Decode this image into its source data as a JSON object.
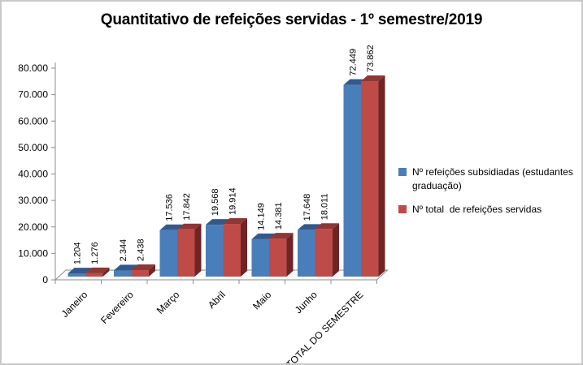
{
  "window": {
    "background": "#ffffff",
    "border_color": "#c9c9c9"
  },
  "chart_data": {
    "type": "bar",
    "style": "3d-clustered-column",
    "title": "Quantitativo de refeições servidas - 1º semestre/2019",
    "categories": [
      "Janeiro",
      "Fevereiro",
      "Março",
      "Abril",
      "Maio",
      "Junho",
      "TOTAL DO SEMESTRE"
    ],
    "series": [
      {
        "name": "Nº refeições subsidiadas (estudantes graduação)",
        "color": "#4a7ebb",
        "top_color": "#35588a",
        "side_color": "#2d4d79",
        "values": [
          1204,
          2344,
          17536,
          19568,
          14149,
          17648,
          72449
        ],
        "value_labels": [
          "1.204",
          "2.344",
          "17.536",
          "19.568",
          "14.149",
          "17.648",
          "72.449"
        ]
      },
      {
        "name": "Nº total  de refeições servidas",
        "color": "#be4b48",
        "top_color": "#8c3836",
        "side_color": "#6e2523",
        "values": [
          1276,
          2438,
          17842,
          19914,
          14381,
          18011,
          73862
        ],
        "value_labels": [
          "1.276",
          "2.438",
          "17.842",
          "19.914",
          "14.381",
          "18.011",
          "73.862"
        ]
      }
    ],
    "y_axis": {
      "min": 0,
      "max": 80000,
      "step": 10000,
      "tick_labels": [
        "0",
        "10.000",
        "20.000",
        "30.000",
        "40.000",
        "50.000",
        "60.000",
        "70.000",
        "80.000"
      ]
    },
    "x_axis": {
      "label_rotation": -45
    },
    "legend_position": "right",
    "gridlines": false,
    "axis_color": "#8c8c8c",
    "text_color": "#000000",
    "floor_fill": "#fafafa"
  }
}
